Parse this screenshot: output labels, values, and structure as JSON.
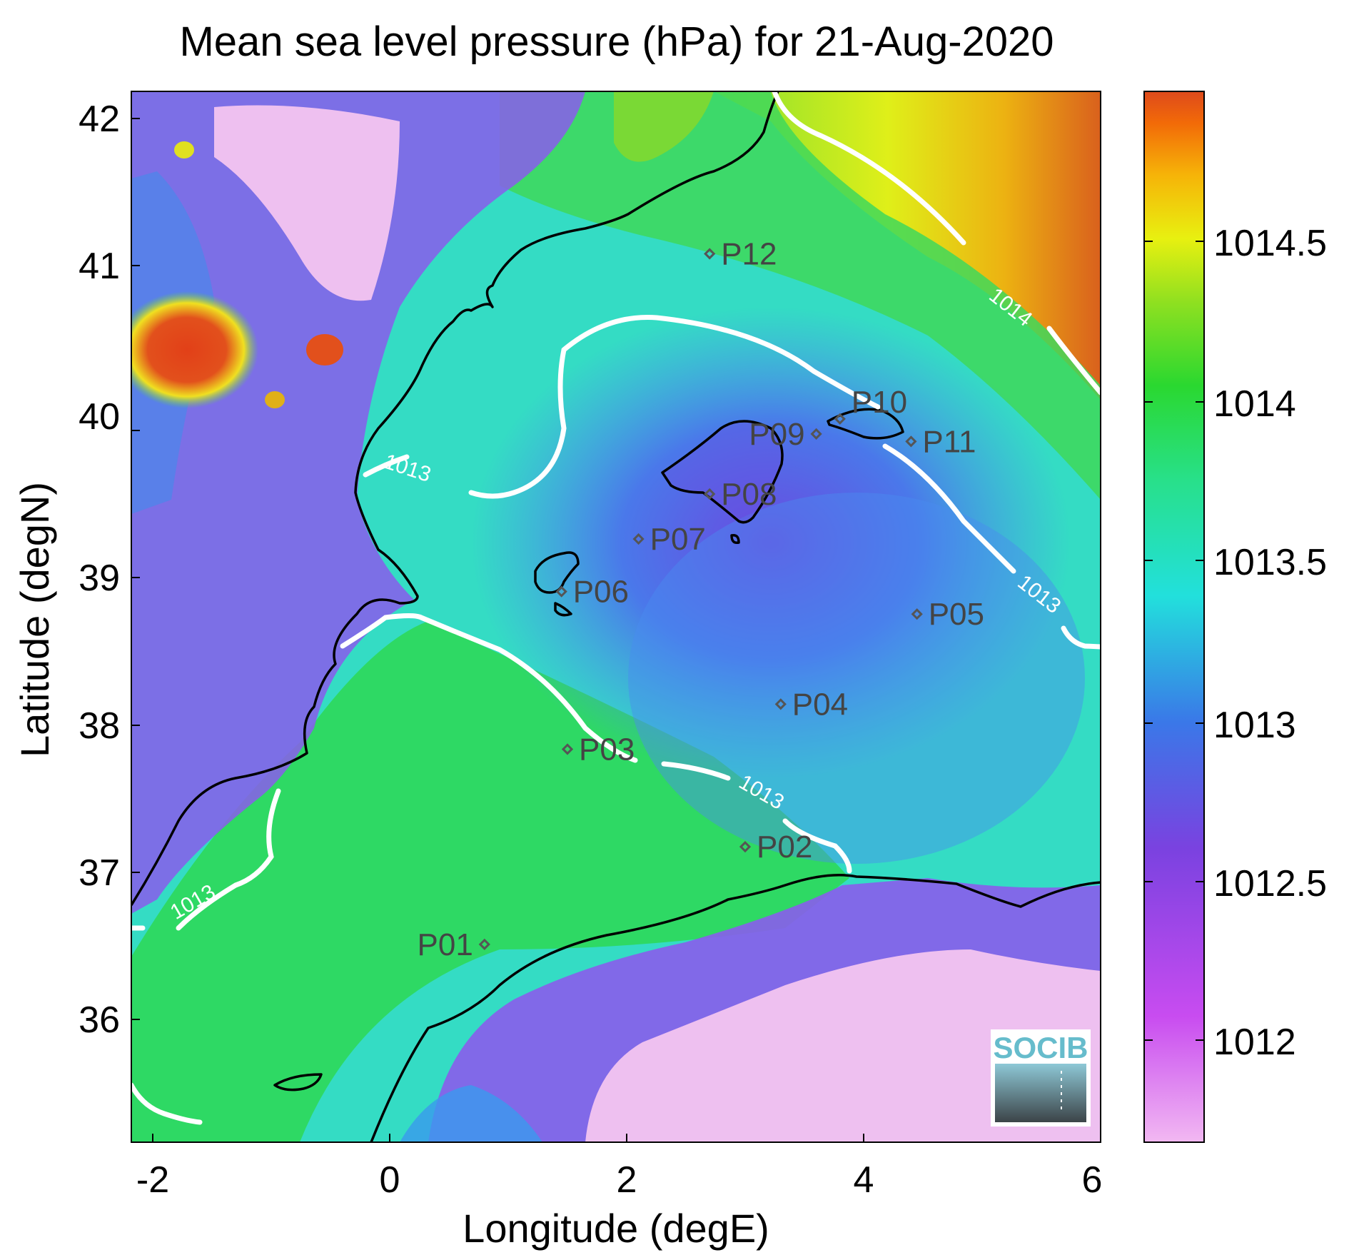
{
  "title": "Mean sea level pressure (hPa) for 21-Aug-2020",
  "xlabel": "Longitude (degE)",
  "ylabel": "Latitude (degN)",
  "x_ticks": [
    "-2",
    "0",
    "2",
    "4",
    "6"
  ],
  "y_ticks": [
    "36",
    "37",
    "38",
    "39",
    "40",
    "41",
    "42"
  ],
  "colorbar_ticks": [
    "1012",
    "1012.5",
    "1013",
    "1013.5",
    "1014",
    "1014.5"
  ],
  "colors": {
    "pressure_low": "#f2b8f2",
    "pressure_high": "#e04a1c",
    "contour": "#ffffff",
    "coastline": "#000000",
    "station_marker": "#555555"
  },
  "contour_labels": [
    "1013",
    "1013",
    "1013",
    "1013",
    "1014"
  ],
  "stations": [
    {
      "name": "P01",
      "lon": 0.8,
      "lat": 36.5
    },
    {
      "name": "P02",
      "lon": 3.0,
      "lat": 37.15
    },
    {
      "name": "P03",
      "lon": 1.5,
      "lat": 37.8
    },
    {
      "name": "P04",
      "lon": 3.3,
      "lat": 38.1
    },
    {
      "name": "P05",
      "lon": 4.45,
      "lat": 38.7
    },
    {
      "name": "P06",
      "lon": 1.45,
      "lat": 38.85
    },
    {
      "name": "P07",
      "lon": 2.1,
      "lat": 39.2
    },
    {
      "name": "P08",
      "lon": 2.7,
      "lat": 39.5
    },
    {
      "name": "P09",
      "lon": 3.6,
      "lat": 39.9
    },
    {
      "name": "P10",
      "lon": 3.8,
      "lat": 40.0
    },
    {
      "name": "P11",
      "lon": 4.4,
      "lat": 39.85
    },
    {
      "name": "P12",
      "lon": 2.7,
      "lat": 41.1
    }
  ],
  "logo_text": "SOCIB"
}
